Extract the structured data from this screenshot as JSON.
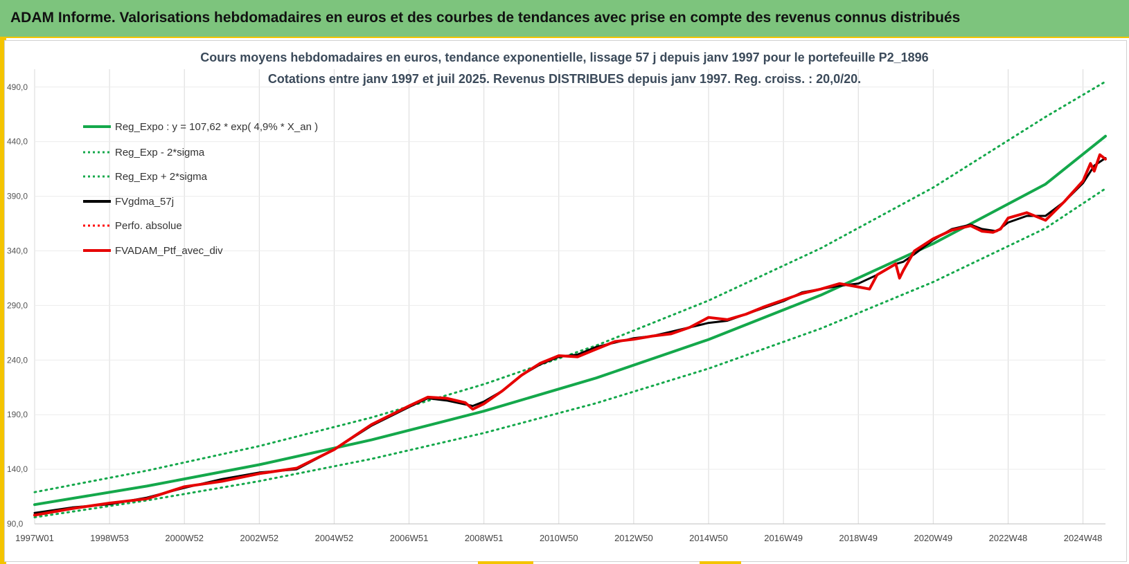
{
  "header": {
    "title": "ADAM Informe. Valorisations hebdomadaires en euros et des courbes de tendances avec prise en compte des revenus connus distribués"
  },
  "chart_data": {
    "type": "line",
    "title": "Cours moyens hebdomadaires  en euros, tendance exponentielle, lissage 57 j depuis janv 1997 pour le portefeuille P2_1896",
    "subtitle": "Cotations entre janv 1997 et juil 2025. Revenus DISTRIBUES depuis janv 1997. Reg. croiss. : 20,0/20.",
    "xlabel": "",
    "ylabel": "",
    "ylim": [
      90,
      500
    ],
    "xlim": [
      1997.0,
      2025.6
    ],
    "y_ticks": [
      "90,0",
      "140,0",
      "190,0",
      "240,0",
      "290,0",
      "340,0",
      "390,0",
      "440,0",
      "490,0"
    ],
    "y_tick_values": [
      90,
      140,
      190,
      240,
      290,
      340,
      390,
      440,
      490
    ],
    "x_ticks": [
      "1997W01",
      "1998W53",
      "2000W52",
      "2002W52",
      "2004W52",
      "2006W51",
      "2008W51",
      "2010W50",
      "2012W50",
      "2014W50",
      "2016W49",
      "2018W49",
      "2020W49",
      "2022W48",
      "2024W48"
    ],
    "x_tick_values": [
      1997.0,
      1999.0,
      2001.0,
      2003.0,
      2005.0,
      2007.0,
      2009.0,
      2011.0,
      2013.0,
      2015.0,
      2017.0,
      2019.0,
      2021.0,
      2023.0,
      2025.0
    ],
    "grid": "vertical",
    "legend_position": "top-left",
    "series": [
      {
        "name": "Reg_Expo : y = 107,62 * exp( 4,9% *  X_an )",
        "style": "solid",
        "color": "#14a84b",
        "x": [
          1997.0,
          2000.0,
          2003.0,
          2006.0,
          2009.0,
          2012.0,
          2015.0,
          2018.0,
          2021.0,
          2024.0,
          2025.6
        ],
        "y": [
          107.6,
          124.6,
          144.2,
          166.9,
          193.2,
          223.6,
          258.8,
          299.5,
          346.6,
          401.1,
          445.0
        ]
      },
      {
        "name": "Reg_Exp - 2*sigma",
        "style": "dotted",
        "color": "#14a84b",
        "x": [
          1997.0,
          2000.0,
          2003.0,
          2006.0,
          2009.0,
          2012.0,
          2015.0,
          2018.0,
          2021.0,
          2024.0,
          2025.6
        ],
        "y": [
          96.0,
          111.5,
          129.1,
          149.5,
          173.2,
          200.5,
          232.2,
          268.9,
          311.5,
          360.7,
          397.0
        ]
      },
      {
        "name": "Reg_Exp + 2*sigma",
        "style": "dotted",
        "color": "#14a84b",
        "x": [
          1997.0,
          2000.0,
          2003.0,
          2006.0,
          2009.0,
          2012.0,
          2015.0,
          2018.0,
          2021.0,
          2024.0,
          2025.6
        ],
        "y": [
          119.0,
          138.7,
          161.2,
          187.4,
          217.9,
          253.3,
          294.5,
          342.4,
          398.0,
          462.7,
          495.0
        ]
      },
      {
        "name": "FVgdma_57j",
        "style": "solid",
        "color": "#000000",
        "x": [
          1997.0,
          1998.0,
          1999.0,
          2000.0,
          2001.0,
          2002.0,
          2003.0,
          2004.0,
          2005.0,
          2006.0,
          2007.0,
          2007.5,
          2008.0,
          2008.7,
          2009.0,
          2009.5,
          2010.0,
          2010.5,
          2011.0,
          2011.5,
          2012.0,
          2012.5,
          2013.0,
          2013.5,
          2014.0,
          2014.5,
          2015.0,
          2015.5,
          2016.0,
          2016.5,
          2017.0,
          2017.5,
          2018.0,
          2018.5,
          2019.0,
          2019.5,
          2020.0,
          2020.2,
          2020.5,
          2021.0,
          2021.5,
          2022.0,
          2022.3,
          2022.7,
          2023.0,
          2023.5,
          2024.0,
          2024.5,
          2025.0,
          2025.3,
          2025.6
        ],
        "y": [
          100.0,
          105.0,
          108.0,
          114.0,
          123.0,
          131.0,
          137.0,
          140.0,
          158.0,
          180.0,
          197.0,
          205.0,
          203.0,
          198.0,
          202.0,
          212.0,
          226.0,
          236.0,
          243.0,
          245.0,
          252.0,
          256.0,
          260.0,
          262.0,
          266.0,
          270.0,
          274.0,
          276.0,
          282.0,
          288.0,
          294.0,
          302.0,
          305.0,
          308.0,
          310.0,
          318.0,
          328.0,
          330.0,
          337.0,
          350.0,
          360.0,
          364.0,
          360.0,
          358.0,
          366.0,
          372.0,
          372.0,
          385.0,
          402.0,
          418.0,
          425.0
        ]
      },
      {
        "name": "Perfo. absolue",
        "style": "dotted",
        "color": "#ff0000",
        "x": [],
        "y": []
      },
      {
        "name": "FVADAM_Ptf_avec_div",
        "style": "solid",
        "color": "#e60000",
        "x": [
          1997.0,
          1998.0,
          1999.0,
          2000.0,
          2001.0,
          2002.0,
          2003.0,
          2004.0,
          2005.0,
          2006.0,
          2007.0,
          2007.5,
          2008.0,
          2008.5,
          2008.7,
          2009.0,
          2009.5,
          2010.0,
          2010.5,
          2011.0,
          2011.5,
          2012.0,
          2012.5,
          2013.0,
          2013.5,
          2014.0,
          2014.5,
          2015.0,
          2015.5,
          2016.0,
          2016.5,
          2017.0,
          2017.5,
          2018.0,
          2018.5,
          2019.0,
          2019.3,
          2019.5,
          2020.0,
          2020.1,
          2020.2,
          2020.5,
          2021.0,
          2021.5,
          2022.0,
          2022.3,
          2022.6,
          2022.8,
          2023.0,
          2023.5,
          2024.0,
          2024.5,
          2025.0,
          2025.2,
          2025.3,
          2025.45,
          2025.6
        ],
        "y": [
          98.0,
          104.0,
          109.0,
          113.0,
          124.0,
          129.0,
          136.0,
          141.0,
          158.0,
          181.0,
          198.0,
          206.0,
          205.0,
          201.0,
          195.0,
          200.0,
          212.0,
          226.0,
          237.0,
          244.0,
          243.0,
          250.0,
          257.0,
          259.0,
          262.0,
          264.0,
          270.0,
          279.0,
          277.0,
          282.0,
          289.0,
          295.0,
          301.0,
          305.0,
          310.0,
          307.0,
          305.0,
          318.0,
          328.0,
          315.0,
          322.0,
          340.0,
          351.0,
          359.0,
          363.0,
          358.0,
          357.0,
          360.0,
          370.0,
          375.0,
          368.0,
          385.0,
          404.0,
          420.0,
          413.0,
          428.0,
          424.0
        ]
      }
    ]
  },
  "colors": {
    "header_bg": "#7dc47d",
    "accent_yellow": "#f4c400",
    "trend_green": "#14a84b",
    "portfolio_red": "#e60000",
    "smoothed_black": "#000000"
  }
}
